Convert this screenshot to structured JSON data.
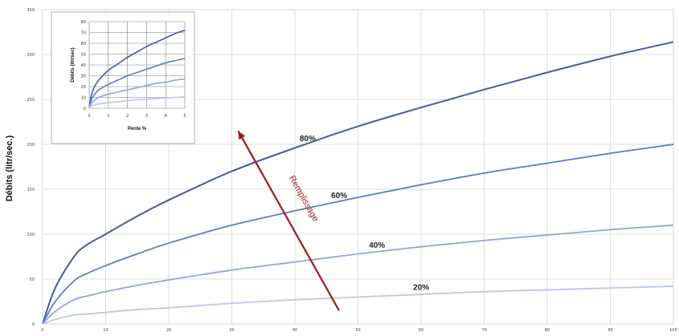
{
  "chart_data": [
    {
      "type": "line",
      "title": "",
      "xlabel": "",
      "ylabel": "Débits (litr/sec.)",
      "x_ticks": [
        "0",
        "10",
        "20",
        "30",
        "40",
        "50",
        "60",
        "70",
        "80",
        "90",
        "100"
      ],
      "y_ticks": [
        "0",
        "50",
        "100",
        "150",
        "200",
        "250",
        "300",
        "350"
      ],
      "xlim": [
        0,
        100
      ],
      "ylim": [
        0,
        350
      ],
      "grid": true,
      "series": [
        {
          "name": "80%",
          "color": "#4a5aa0",
          "x": [
            0,
            2,
            5,
            7,
            10,
            15,
            20,
            30,
            40,
            50,
            60,
            70,
            80,
            90,
            100
          ],
          "values": [
            0,
            40,
            75,
            88,
            100,
            120,
            138,
            170,
            196,
            220,
            241,
            261,
            280,
            298,
            314
          ]
        },
        {
          "name": "60%",
          "color": "#5b7dc4",
          "x": [
            0,
            2,
            5,
            7,
            10,
            15,
            20,
            30,
            40,
            50,
            60,
            70,
            80,
            90,
            100
          ],
          "values": [
            0,
            25,
            48,
            56,
            65,
            78,
            90,
            110,
            126,
            141,
            155,
            168,
            179,
            190,
            200
          ]
        },
        {
          "name": "40%",
          "color": "#8fa6dc",
          "x": [
            0,
            2,
            5,
            7,
            10,
            15,
            20,
            30,
            40,
            50,
            60,
            70,
            80,
            90,
            100
          ],
          "values": [
            0,
            14,
            27,
            31,
            36,
            43,
            49,
            60,
            69,
            78,
            86,
            93,
            99,
            105,
            110
          ]
        },
        {
          "name": "20%",
          "color": "#b8c7ea",
          "x": [
            0,
            2,
            5,
            7,
            10,
            15,
            20,
            30,
            40,
            50,
            60,
            70,
            80,
            90,
            100
          ],
          "values": [
            0,
            5,
            10,
            11,
            13,
            16,
            18,
            23,
            27,
            30,
            33,
            36,
            38,
            40,
            42
          ]
        }
      ],
      "annotations": [
        {
          "text": "Remplissage",
          "color": "#9b1c1c",
          "from": [
            47,
            15
          ],
          "to": [
            31,
            215
          ]
        }
      ]
    },
    {
      "type": "line",
      "title": "",
      "xlabel": "Pente %",
      "ylabel": "Débits (litr/sec)",
      "x_ticks": [
        "0",
        "1",
        "2",
        "3",
        "4",
        "5"
      ],
      "y_ticks": [
        "0",
        "10",
        "20",
        "30",
        "40",
        "50",
        "60",
        "70",
        "80"
      ],
      "xlim": [
        0,
        5
      ],
      "ylim": [
        0,
        80
      ],
      "grid": true,
      "series": [
        {
          "color": "#4a5aa0",
          "x": [
            0,
            0.1,
            0.25,
            0.5,
            1,
            1.5,
            2,
            2.5,
            3,
            3.5,
            4,
            4.5,
            5
          ],
          "values": [
            0,
            11,
            19,
            26,
            35,
            41,
            47,
            52,
            57,
            61,
            65,
            69,
            72
          ]
        },
        {
          "color": "#5b7dc4",
          "x": [
            0,
            0.1,
            0.25,
            0.5,
            1,
            1.5,
            2,
            2.5,
            3,
            3.5,
            4,
            4.5,
            5
          ],
          "values": [
            0,
            7,
            12,
            17,
            22,
            26,
            30,
            33,
            36,
            39,
            42,
            44,
            46
          ]
        },
        {
          "color": "#8fa6dc",
          "x": [
            0,
            0.1,
            0.25,
            0.5,
            1,
            1.5,
            2,
            2.5,
            3,
            3.5,
            4,
            4.5,
            5
          ],
          "values": [
            0,
            4,
            7,
            10,
            13,
            15,
            17,
            19,
            21,
            23,
            24,
            26,
            27
          ]
        },
        {
          "color": "#b8c7ea",
          "x": [
            0,
            0.1,
            0.25,
            0.5,
            1,
            1.5,
            2,
            2.5,
            3,
            3.5,
            4,
            4.5,
            5
          ],
          "values": [
            0,
            2,
            3,
            4,
            5,
            6,
            7,
            8,
            8.5,
            9,
            9.5,
            10,
            10.5
          ]
        }
      ]
    }
  ]
}
